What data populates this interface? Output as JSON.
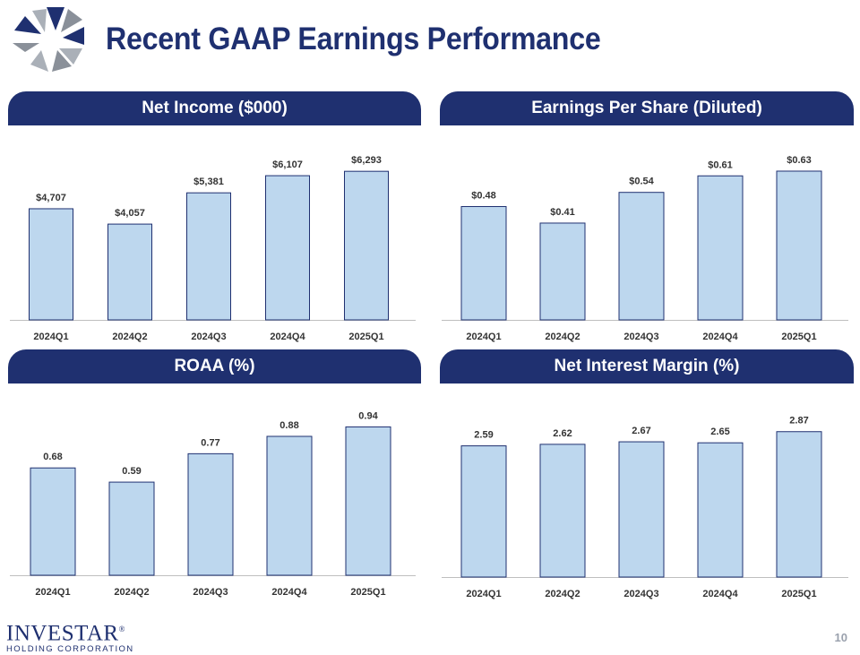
{
  "title": "Recent GAAP Earnings Performance",
  "colors": {
    "navy": "#1f3070",
    "bar_fill": "#bdd7ee",
    "bar_stroke": "#1f3070",
    "axis": "#bfbfbf"
  },
  "footer": {
    "company": "INVESTAR",
    "registered": "®",
    "subtitle": "HOLDING CORPORATION"
  },
  "page_number": "10",
  "charts": [
    {
      "header": "Net Income ($000)"
    },
    {
      "header": "Earnings Per Share (Diluted)"
    },
    {
      "header": "ROAA (%)"
    },
    {
      "header": "Net Interest Margin (%)"
    }
  ],
  "chart_data": [
    {
      "type": "bar",
      "title": "Net Income ($000)",
      "categories": [
        "2024Q1",
        "2024Q2",
        "2024Q3",
        "2024Q4",
        "2025Q1"
      ],
      "values": [
        4707,
        4057,
        5381,
        6107,
        6293
      ],
      "labels": [
        "$4,707",
        "$4,057",
        "$5,381",
        "$6,107",
        "$6,293"
      ],
      "ylim": [
        0,
        7400
      ]
    },
    {
      "type": "bar",
      "title": "Earnings Per Share (Diluted)",
      "categories": [
        "2024Q1",
        "2024Q2",
        "2024Q3",
        "2024Q4",
        "2025Q1"
      ],
      "values": [
        0.48,
        0.41,
        0.54,
        0.61,
        0.63
      ],
      "labels": [
        "$0.48",
        "$0.41",
        "$0.54",
        "$0.61",
        "$0.63"
      ],
      "ylim": [
        0,
        0.74
      ]
    },
    {
      "type": "bar",
      "title": "ROAA (%)",
      "categories": [
        "2024Q1",
        "2024Q2",
        "2024Q3",
        "2024Q4",
        "2025Q1"
      ],
      "values": [
        0.68,
        0.59,
        0.77,
        0.88,
        0.94
      ],
      "labels": [
        "0.68",
        "0.59",
        "0.77",
        "0.88",
        "0.94"
      ],
      "ylim": [
        0,
        1.09
      ]
    },
    {
      "type": "bar",
      "title": "Net Interest Margin (%)",
      "categories": [
        "2024Q1",
        "2024Q2",
        "2024Q3",
        "2024Q4",
        "2025Q1"
      ],
      "values": [
        2.59,
        2.62,
        2.67,
        2.65,
        2.87
      ],
      "labels": [
        "2.59",
        "2.62",
        "2.67",
        "2.65",
        "2.87"
      ],
      "ylim": [
        0,
        3.29
      ]
    }
  ]
}
